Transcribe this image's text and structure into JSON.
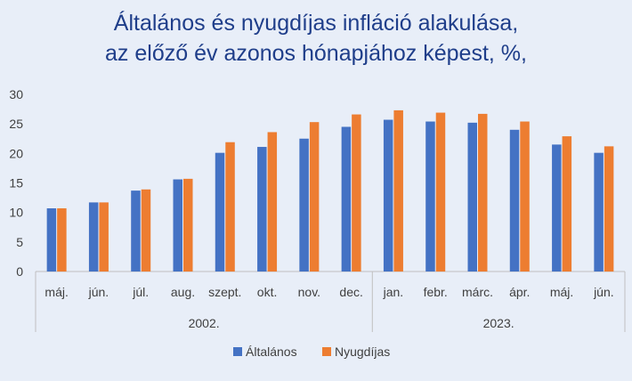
{
  "chart_data": {
    "type": "bar",
    "title_lines": [
      "Általános és nyugdíjas infláció alakulása,",
      "az előző év azonos hónapjához képest, %,"
    ],
    "categories": [
      "máj.",
      "jún.",
      "júl.",
      "aug.",
      "szept.",
      "okt.",
      "nov.",
      "dec.",
      "jan.",
      "febr.",
      "márc.",
      "ápr.",
      "máj.",
      "jún."
    ],
    "category_groups": [
      {
        "label": "2002.",
        "count": 8
      },
      {
        "label": "2023.",
        "count": 6
      }
    ],
    "series": [
      {
        "name": "Általános",
        "color": "#4472c4",
        "values": [
          10.7,
          11.7,
          13.7,
          15.6,
          20.1,
          21.1,
          22.5,
          24.5,
          25.7,
          25.4,
          25.2,
          24.0,
          21.5,
          20.1
        ]
      },
      {
        "name": "Nyugdíjas",
        "color": "#ed7d31",
        "values": [
          10.7,
          11.7,
          13.9,
          15.7,
          21.9,
          23.6,
          25.3,
          26.6,
          27.3,
          26.9,
          26.7,
          25.4,
          22.9,
          21.2
        ]
      }
    ],
    "ylim": [
      0,
      30
    ],
    "yticks": [
      0,
      5,
      10,
      15,
      20,
      25,
      30
    ],
    "xlabel": "",
    "ylabel": "",
    "grid": false,
    "legend_position": "bottom"
  }
}
